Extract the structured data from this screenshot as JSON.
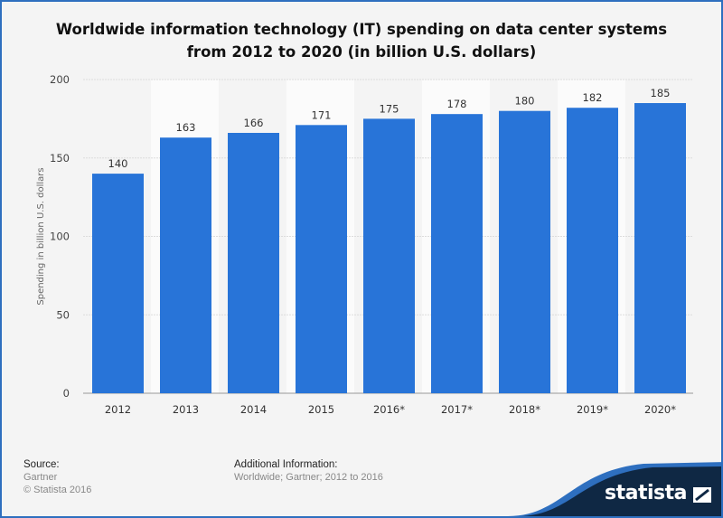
{
  "chart_data": {
    "type": "bar",
    "title_line1": "Worldwide information technology (IT) spending on data center systems",
    "title_line2": "from 2012 to 2020 (in billion U.S. dollars)",
    "categories": [
      "2012",
      "2013",
      "2014",
      "2015",
      "2016*",
      "2017*",
      "2018*",
      "2019*",
      "2020*"
    ],
    "values": [
      140,
      163,
      166,
      171,
      175,
      178,
      180,
      182,
      185
    ],
    "xlabel": "",
    "ylabel": "Spending in billion U.S. dollars",
    "ylim": [
      0,
      200
    ],
    "yticks": [
      0,
      50,
      100,
      150,
      200
    ],
    "grid": true,
    "data_labels": true,
    "bar_color": "#2874d8"
  },
  "footer": {
    "source_label": "Source:",
    "source": "Gartner",
    "copyright": "© Statista 2016",
    "additional_label": "Additional Information:",
    "additional": "Worldwide; Gartner; 2012 to 2016",
    "logo": "statista"
  }
}
